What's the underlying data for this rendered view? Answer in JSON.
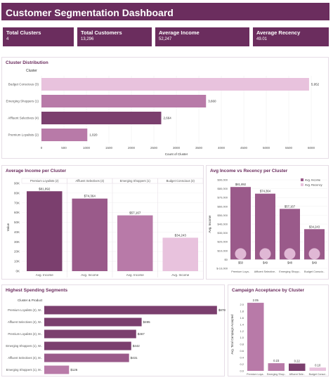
{
  "header": {
    "title": "Customer Segmentation Dashboard"
  },
  "kpis": [
    {
      "label": "Total Clusters",
      "value": "4"
    },
    {
      "label": "Total Customers",
      "value": "13,296"
    },
    {
      "label": "Average Income",
      "value": "52,247"
    },
    {
      "label": "Average Recency",
      "value": "49.01"
    }
  ],
  "colors": {
    "header": "#6b2d5e",
    "c1": "#7b3f6e",
    "c2": "#9a5a8a",
    "c3": "#b87aa8",
    "c4": "#e8c2dd"
  },
  "cluster_distribution": {
    "title": "Cluster Distribution",
    "field_label": "Cluster",
    "chart_data": {
      "type": "bar",
      "categories": [
        "Budget Conscious (3)",
        "Emerging Shoppers (1)",
        "Affluent Selectives (4)",
        "Premium Loyalists (2)"
      ],
      "values": [
        5952,
        3660,
        2664,
        1020
      ],
      "value_labels": [
        "5,952",
        "3,660",
        "2,664",
        "1,020"
      ],
      "xlim": [
        0,
        6000
      ],
      "xticks": [
        "0",
        "500",
        "1000",
        "1500",
        "2000",
        "2500",
        "3000",
        "3500",
        "4000",
        "4500",
        "5000",
        "5500",
        "6000"
      ],
      "xlabel": "Count of Cluster"
    }
  },
  "avg_income_cluster": {
    "title": "Average Income per Cluster",
    "chart_data": {
      "type": "bar",
      "categories": [
        "Premium Loyalists (2)",
        "Affluent Selectives (4)",
        "Emerging Shoppers (1)",
        "Budget Conscious (3)"
      ],
      "values": [
        81892,
        74364,
        57167,
        34243
      ],
      "value_labels": [
        "$81,892",
        "$74,364",
        "$57,167",
        "$34,243"
      ],
      "bar_label": "Avg. Income",
      "ylim": [
        0,
        90000
      ],
      "yticks": [
        "0K",
        "10K",
        "20K",
        "30K",
        "40K",
        "50K",
        "60K",
        "70K",
        "80K",
        "90K"
      ],
      "ylabel": "Value"
    }
  },
  "income_recency": {
    "title": "Avg Income vs Recency per Cluster",
    "legend": [
      "Avg. Income",
      "Avg. Recency"
    ],
    "chart_data": {
      "type": "bar",
      "categories": [
        "Premium Loya..",
        "Affluent Selective..",
        "Emerging Shopp..",
        "Budget Conscio.."
      ],
      "series": [
        {
          "name": "Avg. Income",
          "values": [
            81892,
            74364,
            57167,
            34243
          ],
          "labels": [
            "$81,892",
            "$74,364",
            "$57,167",
            "$34,243"
          ]
        },
        {
          "name": "Avg. Recency",
          "values": [
            50,
            49,
            48,
            49
          ],
          "labels": [
            "$50",
            "$49",
            "$48",
            "$49"
          ]
        }
      ],
      "ylim": [
        -10000,
        90000
      ],
      "yticks": [
        "$-10,000",
        "$0",
        "$10,000",
        "$20,000",
        "$30,000",
        "$40,000",
        "$50,000",
        "$60,000",
        "$70,000",
        "$80,000",
        "$90,000"
      ],
      "ylabel": "Avg. Income"
    }
  },
  "spending": {
    "title": "Highest Spending Segments",
    "field_label": "Cluster & Product",
    "chart_data": {
      "type": "bar",
      "categories": [
        "Premium Loyalists (2), W..",
        "Affluent Selectives (4), W..",
        "Premium Loyalists (2), M..",
        "Emerging Shoppers (1), W..",
        "Affluent Selectives (4), M..",
        "Emerging Shoppers (1), M.."
      ],
      "values": [
        878,
        495,
        467,
        442,
        431,
        126
      ],
      "value_labels": [
        "$878",
        "$495",
        "$467",
        "$442",
        "$431",
        "$126"
      ],
      "xlim": [
        0,
        900
      ]
    }
  },
  "campaign": {
    "title": "Campaign Acceptance by Cluster",
    "chart_data": {
      "type": "bar",
      "categories": [
        "Premium Loya..",
        "Emerging Shop..",
        "Affluent Sele..",
        "Budget Consci.."
      ],
      "values": [
        2.05,
        0.23,
        0.22,
        0.1
      ],
      "value_labels": [
        "2.05",
        "0.23",
        "0.22",
        "0.10"
      ],
      "ylim": [
        0,
        2.2
      ],
      "yticks": [
        "0.0",
        "0.2",
        "0.4",
        "0.6",
        "0.8",
        "1.0",
        "1.2",
        "1.4",
        "1.6",
        "1.8",
        "2.0"
      ],
      "ylabel": "Avg. Total Campaign Accepted"
    }
  }
}
